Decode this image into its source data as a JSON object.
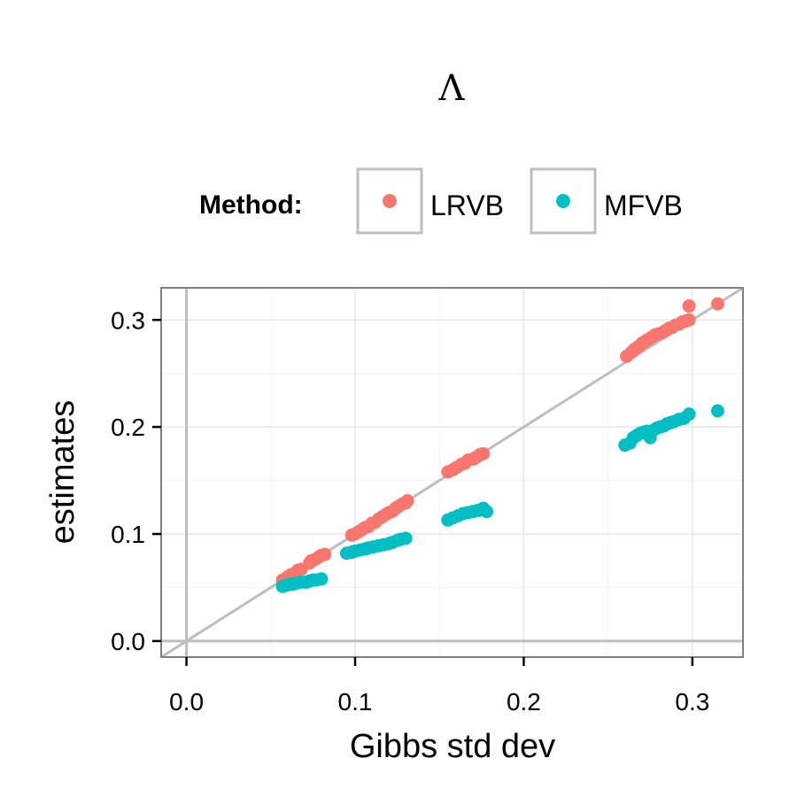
{
  "chart_data": {
    "type": "scatter",
    "title": "Λ",
    "xlabel": "Gibbs std dev",
    "ylabel": "estimates",
    "xlim": [
      -0.015,
      0.33
    ],
    "ylim": [
      -0.015,
      0.33
    ],
    "xticks": [
      "0.0",
      "0.1",
      "0.2",
      "0.3"
    ],
    "yticks": [
      "0.0",
      "0.1",
      "0.2",
      "0.3"
    ],
    "grid": true,
    "reference_line": "y = x",
    "legend": {
      "title": "Method:",
      "position": "top"
    },
    "series": [
      {
        "name": "LRVB",
        "color": "#F8766D",
        "points": [
          [
            0.057,
            0.057
          ],
          [
            0.059,
            0.058
          ],
          [
            0.06,
            0.06
          ],
          [
            0.062,
            0.062
          ],
          [
            0.063,
            0.062
          ],
          [
            0.065,
            0.064
          ],
          [
            0.066,
            0.066
          ],
          [
            0.068,
            0.067
          ],
          [
            0.073,
            0.073
          ],
          [
            0.074,
            0.075
          ],
          [
            0.076,
            0.076
          ],
          [
            0.078,
            0.078
          ],
          [
            0.079,
            0.079
          ],
          [
            0.08,
            0.08
          ],
          [
            0.082,
            0.081
          ],
          [
            0.098,
            0.099
          ],
          [
            0.1,
            0.1
          ],
          [
            0.102,
            0.102
          ],
          [
            0.104,
            0.104
          ],
          [
            0.106,
            0.106
          ],
          [
            0.108,
            0.107
          ],
          [
            0.11,
            0.11
          ],
          [
            0.112,
            0.111
          ],
          [
            0.114,
            0.114
          ],
          [
            0.116,
            0.116
          ],
          [
            0.118,
            0.118
          ],
          [
            0.12,
            0.12
          ],
          [
            0.122,
            0.121
          ],
          [
            0.124,
            0.124
          ],
          [
            0.126,
            0.126
          ],
          [
            0.128,
            0.128
          ],
          [
            0.13,
            0.129
          ],
          [
            0.131,
            0.131
          ],
          [
            0.155,
            0.158
          ],
          [
            0.158,
            0.16
          ],
          [
            0.16,
            0.162
          ],
          [
            0.163,
            0.165
          ],
          [
            0.165,
            0.166
          ],
          [
            0.167,
            0.169
          ],
          [
            0.17,
            0.17
          ],
          [
            0.172,
            0.172
          ],
          [
            0.174,
            0.174
          ],
          [
            0.176,
            0.175
          ],
          [
            0.261,
            0.266
          ],
          [
            0.264,
            0.27
          ],
          [
            0.266,
            0.273
          ],
          [
            0.268,
            0.275
          ],
          [
            0.27,
            0.278
          ],
          [
            0.272,
            0.28
          ],
          [
            0.274,
            0.282
          ],
          [
            0.276,
            0.284
          ],
          [
            0.278,
            0.286
          ],
          [
            0.28,
            0.287
          ],
          [
            0.282,
            0.288
          ],
          [
            0.284,
            0.29
          ],
          [
            0.286,
            0.292
          ],
          [
            0.288,
            0.293
          ],
          [
            0.29,
            0.295
          ],
          [
            0.292,
            0.296
          ],
          [
            0.294,
            0.298
          ],
          [
            0.296,
            0.299
          ],
          [
            0.298,
            0.3
          ],
          [
            0.298,
            0.313
          ],
          [
            0.315,
            0.315
          ]
        ]
      },
      {
        "name": "MFVB",
        "color": "#00BFC4",
        "points": [
          [
            0.057,
            0.051
          ],
          [
            0.059,
            0.052
          ],
          [
            0.061,
            0.053
          ],
          [
            0.063,
            0.053
          ],
          [
            0.065,
            0.054
          ],
          [
            0.068,
            0.055
          ],
          [
            0.071,
            0.055
          ],
          [
            0.073,
            0.056
          ],
          [
            0.075,
            0.057
          ],
          [
            0.077,
            0.057
          ],
          [
            0.08,
            0.058
          ],
          [
            0.095,
            0.082
          ],
          [
            0.098,
            0.083
          ],
          [
            0.1,
            0.084
          ],
          [
            0.103,
            0.085
          ],
          [
            0.106,
            0.086
          ],
          [
            0.108,
            0.087
          ],
          [
            0.111,
            0.088
          ],
          [
            0.114,
            0.089
          ],
          [
            0.117,
            0.09
          ],
          [
            0.12,
            0.091
          ],
          [
            0.122,
            0.092
          ],
          [
            0.125,
            0.094
          ],
          [
            0.127,
            0.095
          ],
          [
            0.13,
            0.096
          ],
          [
            0.155,
            0.113
          ],
          [
            0.158,
            0.115
          ],
          [
            0.161,
            0.117
          ],
          [
            0.164,
            0.119
          ],
          [
            0.167,
            0.12
          ],
          [
            0.17,
            0.121
          ],
          [
            0.173,
            0.122
          ],
          [
            0.176,
            0.124
          ],
          [
            0.178,
            0.121
          ],
          [
            0.26,
            0.183
          ],
          [
            0.263,
            0.185
          ],
          [
            0.265,
            0.19
          ],
          [
            0.267,
            0.192
          ],
          [
            0.269,
            0.194
          ],
          [
            0.271,
            0.195
          ],
          [
            0.273,
            0.196
          ],
          [
            0.275,
            0.19
          ],
          [
            0.277,
            0.197
          ],
          [
            0.279,
            0.199
          ],
          [
            0.281,
            0.2
          ],
          [
            0.283,
            0.201
          ],
          [
            0.285,
            0.203
          ],
          [
            0.287,
            0.204
          ],
          [
            0.289,
            0.205
          ],
          [
            0.292,
            0.207
          ],
          [
            0.295,
            0.208
          ],
          [
            0.298,
            0.212
          ],
          [
            0.315,
            0.215
          ]
        ]
      }
    ]
  }
}
